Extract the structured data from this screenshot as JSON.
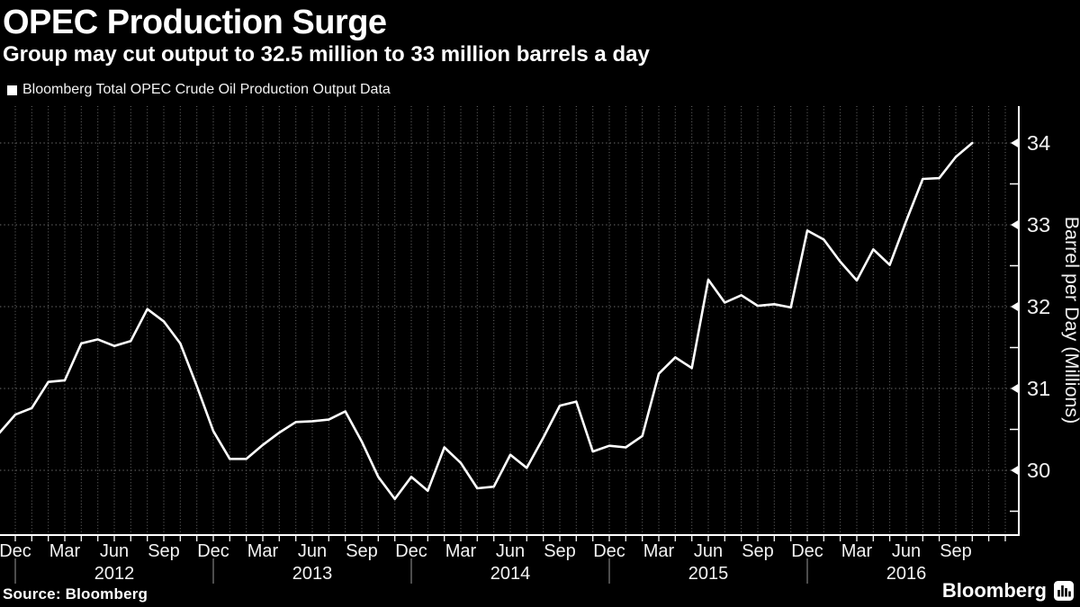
{
  "header": {
    "title": "OPEC Production Surge",
    "subtitle": "Group may cut output to 32.5 million to 33 million barrels a day"
  },
  "legend": {
    "label": "Bloomberg Total OPEC Crude Oil Production Output Data",
    "swatch_color": "#ffffff"
  },
  "footer": {
    "source": "Source: Bloomberg",
    "brand": "Bloomberg",
    "brand_icon": "bloomberg-terminal-icon"
  },
  "colors": {
    "background": "#000000",
    "line": "#ffffff",
    "grid": "#6e6e6e",
    "axis": "#ffffff",
    "tick_text": "#f2f2f2",
    "year_separator": "#999999"
  },
  "chart_data": {
    "type": "line",
    "title": "OPEC Production Surge",
    "ylabel": "Barrel per Day (Millions)",
    "xlabel": "",
    "grid": "dotted",
    "legend_position": "top-left",
    "ylim": [
      29.2,
      34.45
    ],
    "y_ticks": [
      30,
      31,
      32,
      33,
      34
    ],
    "y_minor_ticks": [
      29.5,
      30.5,
      31.5,
      32.5,
      33.5
    ],
    "x_quarter_labels": [
      {
        "m": 0,
        "label": "Dec"
      },
      {
        "m": 3,
        "label": "Mar"
      },
      {
        "m": 6,
        "label": "Jun"
      },
      {
        "m": 9,
        "label": "Sep"
      },
      {
        "m": 12,
        "label": "Dec"
      },
      {
        "m": 15,
        "label": "Mar"
      },
      {
        "m": 18,
        "label": "Jun"
      },
      {
        "m": 21,
        "label": "Sep"
      },
      {
        "m": 24,
        "label": "Dec"
      },
      {
        "m": 27,
        "label": "Mar"
      },
      {
        "m": 30,
        "label": "Jun"
      },
      {
        "m": 33,
        "label": "Sep"
      },
      {
        "m": 36,
        "label": "Dec"
      },
      {
        "m": 39,
        "label": "Mar"
      },
      {
        "m": 42,
        "label": "Jun"
      },
      {
        "m": 45,
        "label": "Sep"
      },
      {
        "m": 48,
        "label": "Dec"
      },
      {
        "m": 51,
        "label": "Mar"
      },
      {
        "m": 54,
        "label": "Jun"
      },
      {
        "m": 57,
        "label": "Sep"
      }
    ],
    "x_year_labels": [
      {
        "m": 6,
        "label": "2012"
      },
      {
        "m": 18,
        "label": "2013"
      },
      {
        "m": 30,
        "label": "2014"
      },
      {
        "m": 42,
        "label": "2015"
      },
      {
        "m": 54,
        "label": "2016"
      }
    ],
    "year_separator_months": [
      0,
      12,
      24,
      36,
      48
    ],
    "series": [
      {
        "name": "Bloomberg Total OPEC Crude Oil Production Output Data",
        "color": "#ffffff",
        "months": [
          "Nov 2011",
          "Dec 2011",
          "Jan 2012",
          "Feb 2012",
          "Mar 2012",
          "Apr 2012",
          "May 2012",
          "Jun 2012",
          "Jul 2012",
          "Aug 2012",
          "Sep 2012",
          "Oct 2012",
          "Nov 2012",
          "Dec 2012",
          "Jan 2013",
          "Feb 2013",
          "Mar 2013",
          "Apr 2013",
          "May 2013",
          "Jun 2013",
          "Jul 2013",
          "Aug 2013",
          "Sep 2013",
          "Oct 2013",
          "Nov 2013",
          "Dec 2013",
          "Jan 2014",
          "Feb 2014",
          "Mar 2014",
          "Apr 2014",
          "May 2014",
          "Jun 2014",
          "Jul 2014",
          "Aug 2014",
          "Sep 2014",
          "Oct 2014",
          "Nov 2014",
          "Dec 2014",
          "Jan 2015",
          "Feb 2015",
          "Mar 2015",
          "Apr 2015",
          "May 2015",
          "Jun 2015",
          "Jul 2015",
          "Aug 2015",
          "Sep 2015",
          "Oct 2015",
          "Nov 2015",
          "Dec 2015",
          "Jan 2016",
          "Feb 2016",
          "Mar 2016",
          "Apr 2016",
          "May 2016",
          "Jun 2016",
          "Jul 2016",
          "Aug 2016",
          "Sep 2016",
          "Oct 2016"
        ],
        "values": [
          30.45,
          30.68,
          30.76,
          31.08,
          31.1,
          31.55,
          31.6,
          31.52,
          31.58,
          31.97,
          31.82,
          31.55,
          31.03,
          30.48,
          30.14,
          30.14,
          30.31,
          30.46,
          30.59,
          30.6,
          30.62,
          30.72,
          30.35,
          29.92,
          29.65,
          29.92,
          29.75,
          30.28,
          30.09,
          29.78,
          29.8,
          30.19,
          30.03,
          30.4,
          30.79,
          30.84,
          30.23,
          30.3,
          30.28,
          30.42,
          31.18,
          31.38,
          31.25,
          32.33,
          32.05,
          32.14,
          32.01,
          32.03,
          31.99,
          32.93,
          32.82,
          32.55,
          32.32,
          32.7,
          32.51,
          33.05,
          33.56,
          33.57,
          33.83,
          34.0
        ]
      }
    ]
  }
}
